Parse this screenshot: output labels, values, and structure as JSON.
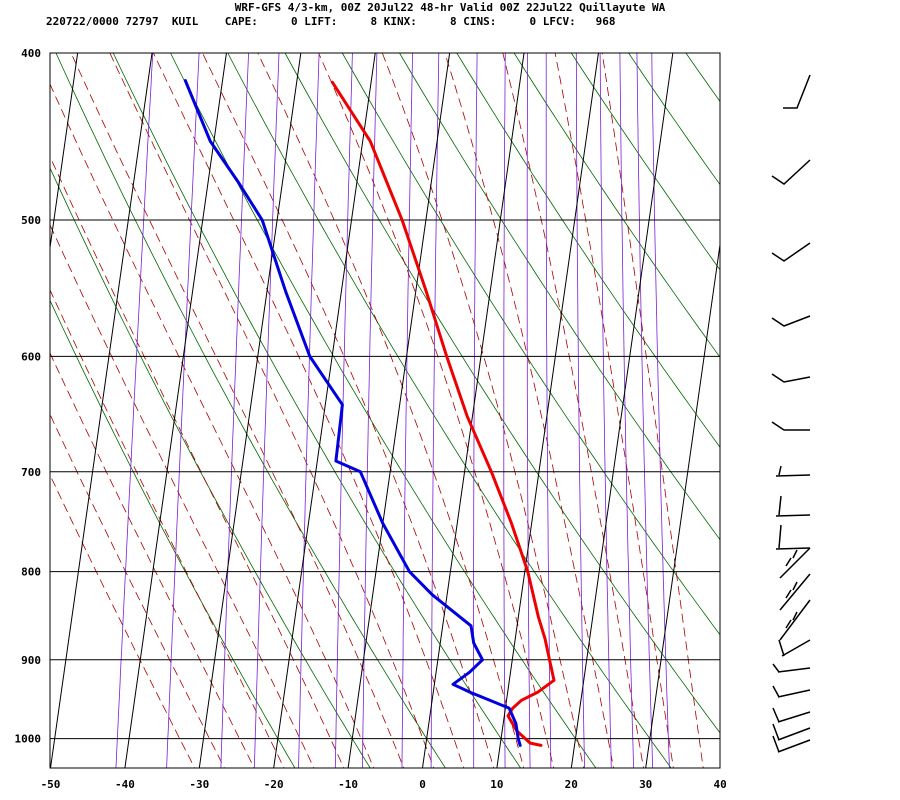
{
  "header": {
    "title": "WRF-GFS 4/3-km, 00Z 20Jul22 48-hr Valid 00Z 22Jul22 Quillayute WA",
    "subtitle": "220722/0000 72797  KUIL    CAPE:     0 LIFT:     8 KINX:     8 CINS:     0 LFCV:   968"
  },
  "colors": {
    "temperature": "#ee0000",
    "dewpoint": "#0000dd",
    "dry_adiabat": "#006600",
    "moist_adiabat": "#aa0000",
    "mixing_ratio": "#7a1fd0",
    "grid": "#000000"
  },
  "chart_data": {
    "type": "line",
    "title": "",
    "xlabel": "",
    "ylabel": "",
    "x_axis_ticks": [
      "-50",
      "-40",
      "-30",
      "-20",
      "-10",
      "0",
      "10",
      "20",
      "30",
      "40"
    ],
    "y_axis_ticks": [
      "400",
      "500",
      "600",
      "700",
      "800",
      "900",
      "1000"
    ],
    "xlim": [
      -50,
      40
    ],
    "ylim": [
      1040,
      400
    ],
    "y_scale": "log-pressure",
    "grid": true,
    "series": [
      {
        "key": "temperature",
        "points": [
          {
            "p": 1009,
            "t": 15.5
          },
          {
            "p": 1006,
            "t": 14
          },
          {
            "p": 990,
            "t": 12
          },
          {
            "p": 970,
            "t": 10.5
          },
          {
            "p": 960,
            "t": 11
          },
          {
            "p": 950,
            "t": 12
          },
          {
            "p": 940,
            "t": 14
          },
          {
            "p": 925,
            "t": 16
          },
          {
            "p": 900,
            "t": 15
          },
          {
            "p": 875,
            "t": 14
          },
          {
            "p": 850,
            "t": 12.7
          },
          {
            "p": 800,
            "t": 10.4
          },
          {
            "p": 750,
            "t": 7.3
          },
          {
            "p": 700,
            "t": 3.6
          },
          {
            "p": 650,
            "t": -0.7
          },
          {
            "p": 600,
            "t": -4.6
          },
          {
            "p": 550,
            "t": -8.6
          },
          {
            "p": 500,
            "t": -13.2
          },
          {
            "p": 450,
            "t": -19
          },
          {
            "p": 416,
            "t": -25.2
          }
        ]
      },
      {
        "key": "dewpoint",
        "points": [
          {
            "p": 1009,
            "t": 12.7
          },
          {
            "p": 1000,
            "t": 12.3
          },
          {
            "p": 980,
            "t": 11.7
          },
          {
            "p": 960,
            "t": 10.5
          },
          {
            "p": 940,
            "t": 5
          },
          {
            "p": 930,
            "t": 2.5
          },
          {
            "p": 915,
            "t": 4.5
          },
          {
            "p": 900,
            "t": 6
          },
          {
            "p": 880,
            "t": 4.5
          },
          {
            "p": 860,
            "t": 3.8
          },
          {
            "p": 825,
            "t": -2
          },
          {
            "p": 800,
            "t": -5.5
          },
          {
            "p": 750,
            "t": -10
          },
          {
            "p": 700,
            "t": -14
          },
          {
            "p": 690,
            "t": -17.5
          },
          {
            "p": 640,
            "t": -17.7
          },
          {
            "p": 600,
            "t": -23
          },
          {
            "p": 550,
            "t": -27.5
          },
          {
            "p": 500,
            "t": -32
          },
          {
            "p": 475,
            "t": -36
          },
          {
            "p": 450,
            "t": -40.5
          },
          {
            "p": 415,
            "t": -45
          }
        ]
      }
    ],
    "wind_barbs_count": 18
  }
}
